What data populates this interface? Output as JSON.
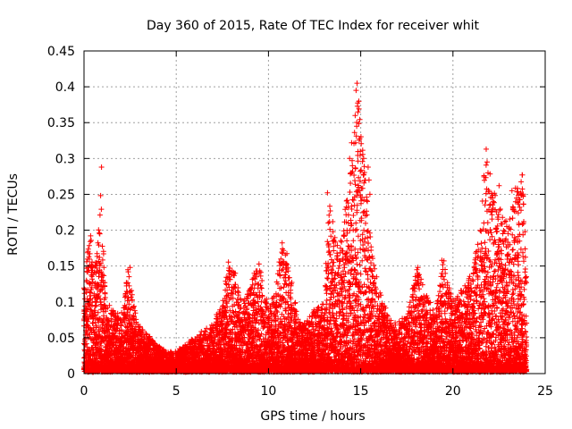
{
  "chart_data": {
    "type": "scatter",
    "title": "Day 360 of 2015, Rate Of TEC Index for receiver whit",
    "xlabel": "GPS time / hours",
    "ylabel": "ROTI / TECUs",
    "xlim": [
      0,
      25
    ],
    "ylim": [
      0,
      0.45
    ],
    "x_ticks": [
      "0",
      "5",
      "10",
      "15",
      "20",
      "25"
    ],
    "y_ticks": [
      "0",
      "0.05",
      "0.1",
      "0.15",
      "0.2",
      "0.25",
      "0.3",
      "0.35",
      "0.4",
      "0.45"
    ],
    "grid": true,
    "marker": "+",
    "series": [
      {
        "color": "#ff0000",
        "envelope_x": [
          0.0,
          0.3,
          0.6,
          0.9,
          1.2,
          1.6,
          2.0,
          2.4,
          2.8,
          3.2,
          3.6,
          4.0,
          4.5,
          5.0,
          5.5,
          6.0,
          6.5,
          7.0,
          7.5,
          7.8,
          8.2,
          8.6,
          9.0,
          9.5,
          10.0,
          10.4,
          10.8,
          11.2,
          11.6,
          12.0,
          12.5,
          13.0,
          13.3,
          13.7,
          14.0,
          14.4,
          14.8,
          15.2,
          15.6,
          16.0,
          16.5,
          17.0,
          17.5,
          18.0,
          18.5,
          19.0,
          19.5,
          20.0,
          20.5,
          21.0,
          21.4,
          21.8,
          22.2,
          22.6,
          23.0,
          23.4,
          23.8,
          24.0
        ],
        "envelope_y": [
          0.12,
          0.2,
          0.16,
          0.25,
          0.1,
          0.09,
          0.08,
          0.15,
          0.08,
          0.06,
          0.05,
          0.04,
          0.03,
          0.03,
          0.04,
          0.05,
          0.06,
          0.07,
          0.1,
          0.16,
          0.14,
          0.1,
          0.12,
          0.16,
          0.09,
          0.12,
          0.2,
          0.14,
          0.08,
          0.07,
          0.09,
          0.1,
          0.25,
          0.18,
          0.19,
          0.3,
          0.4,
          0.29,
          0.17,
          0.12,
          0.08,
          0.07,
          0.08,
          0.15,
          0.12,
          0.08,
          0.16,
          0.1,
          0.12,
          0.14,
          0.2,
          0.31,
          0.26,
          0.23,
          0.21,
          0.26,
          0.28,
          0.12
        ],
        "outliers": [
          [
            0.95,
            0.288
          ],
          [
            2.5,
            0.148
          ],
          [
            13.2,
            0.252
          ],
          [
            14.8,
            0.405
          ],
          [
            14.75,
            0.395
          ],
          [
            14.9,
            0.38
          ],
          [
            14.85,
            0.365
          ],
          [
            14.7,
            0.36
          ],
          [
            14.78,
            0.345
          ],
          [
            15.4,
            0.288
          ],
          [
            15.45,
            0.27
          ],
          [
            15.5,
            0.25
          ],
          [
            14.4,
            0.3
          ],
          [
            14.5,
            0.28
          ],
          [
            21.8,
            0.313
          ],
          [
            21.85,
            0.295
          ],
          [
            21.9,
            0.28
          ],
          [
            23.75,
            0.277
          ],
          [
            22.5,
            0.262
          ],
          [
            23.2,
            0.255
          ],
          [
            19.4,
            0.158
          ],
          [
            18.1,
            0.148
          ],
          [
            23.8,
            0.248
          ]
        ]
      }
    ]
  }
}
